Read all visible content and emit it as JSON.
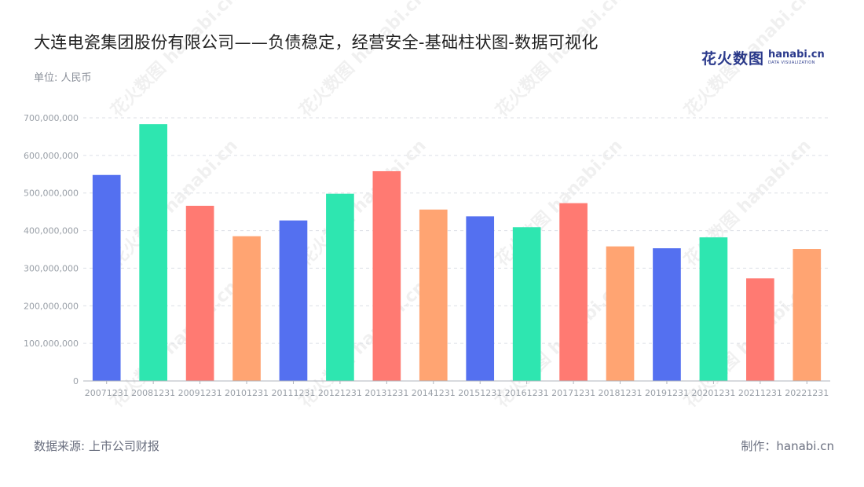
{
  "title": "大连电瓷集团股份有限公司——负债稳定，经营安全-基础柱状图-数据可视化",
  "unit_label": "单位: 人民币",
  "logo": {
    "cn": "花火数图",
    "en": "hanabi.cn",
    "en_sub": "DATA VISUALIZATION"
  },
  "watermark_text": "花火数图 hanabi.cn",
  "footer": {
    "source": "数据来源: 上市公司财报",
    "maker": "制作：hanabi.cn"
  },
  "colors": {
    "palette": [
      "#5470f0",
      "#2ee6b0",
      "#ff7a72",
      "#ffa472"
    ],
    "grid": "#dcdfe6",
    "axis": "#b0b4bc"
  },
  "chart_data": {
    "type": "bar",
    "title": "大连电瓷集团股份有限公司——负债稳定，经营安全-基础柱状图-数据可视化",
    "ylabel": "单位: 人民币",
    "xlabel": "",
    "ylim": [
      0,
      700000000
    ],
    "yticks": [
      0,
      100000000,
      200000000,
      300000000,
      400000000,
      500000000,
      600000000,
      700000000
    ],
    "ytick_labels": [
      "0",
      "100,000,000",
      "200,000,000",
      "300,000,000",
      "400,000,000",
      "500,000,000",
      "600,000,000",
      "700,000,000"
    ],
    "grid": true,
    "categories": [
      "20071231",
      "20081231",
      "20091231",
      "20101231",
      "20111231",
      "20121231",
      "20131231",
      "20141231",
      "20151231",
      "20161231",
      "20171231",
      "20181231",
      "20191231",
      "20201231",
      "20211231",
      "20221231"
    ],
    "values": [
      548000000,
      683000000,
      466000000,
      385000000,
      427000000,
      498000000,
      558000000,
      456000000,
      438000000,
      409000000,
      473000000,
      358000000,
      353000000,
      382000000,
      273000000,
      351000000
    ]
  }
}
